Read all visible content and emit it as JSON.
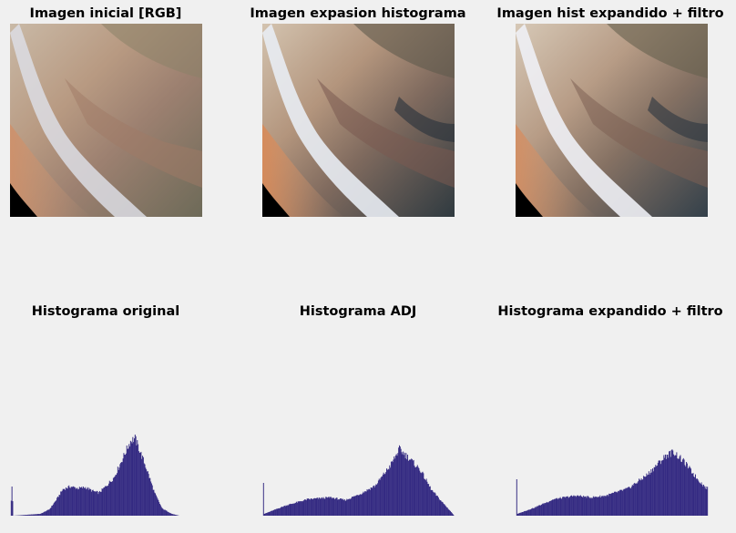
{
  "figure": {
    "titles": [
      "Imagen inicial [RGB]",
      "Imagen expasion histograma",
      "Imagen hist expandido + filtro",
      "Histograma original",
      "Histograma ADJ",
      "Histograma expandido + filtro"
    ]
  },
  "colors": {
    "bar": "#342a82",
    "background": "#f0f0f0",
    "image_corner": "#000000"
  },
  "chart_data": [
    {
      "type": "bar",
      "title": "Histograma original",
      "x_range": [
        0,
        255
      ],
      "control_points": [
        [
          0,
          0
        ],
        [
          2,
          0.32
        ],
        [
          4,
          0
        ],
        [
          40,
          0.02
        ],
        [
          52,
          0.07
        ],
        [
          60,
          0.16
        ],
        [
          70,
          0.29
        ],
        [
          80,
          0.32
        ],
        [
          90,
          0.3
        ],
        [
          100,
          0.31
        ],
        [
          110,
          0.27
        ],
        [
          118,
          0.25
        ],
        [
          128,
          0.33
        ],
        [
          138,
          0.42
        ],
        [
          148,
          0.6
        ],
        [
          160,
          0.82
        ],
        [
          166,
          0.85
        ],
        [
          172,
          0.72
        ],
        [
          182,
          0.5
        ],
        [
          192,
          0.25
        ],
        [
          202,
          0.08
        ],
        [
          215,
          0.02
        ],
        [
          225,
          0
        ]
      ],
      "spikes": [
        [
          2,
          0.32
        ]
      ]
    },
    {
      "type": "bar",
      "title": "Histograma ADJ",
      "x_range": [
        0,
        255
      ],
      "control_points": [
        [
          0,
          0
        ],
        [
          1,
          0.36
        ],
        [
          2,
          0.02
        ],
        [
          30,
          0.11
        ],
        [
          60,
          0.18
        ],
        [
          90,
          0.2
        ],
        [
          110,
          0.17
        ],
        [
          130,
          0.24
        ],
        [
          150,
          0.33
        ],
        [
          170,
          0.55
        ],
        [
          182,
          0.73
        ],
        [
          195,
          0.63
        ],
        [
          210,
          0.5
        ],
        [
          225,
          0.28
        ],
        [
          240,
          0.14
        ],
        [
          250,
          0.05
        ],
        [
          255,
          0.0
        ]
      ],
      "spikes": [
        [
          1,
          0.36
        ]
      ]
    },
    {
      "type": "bar",
      "title": "Histograma expandido + filtro",
      "x_range": [
        0,
        255
      ],
      "control_points": [
        [
          0,
          0
        ],
        [
          1,
          0.4
        ],
        [
          2,
          0.02
        ],
        [
          25,
          0.09
        ],
        [
          50,
          0.18
        ],
        [
          80,
          0.22
        ],
        [
          100,
          0.2
        ],
        [
          120,
          0.22
        ],
        [
          150,
          0.3
        ],
        [
          175,
          0.45
        ],
        [
          200,
          0.66
        ],
        [
          210,
          0.7
        ],
        [
          225,
          0.58
        ],
        [
          240,
          0.42
        ],
        [
          250,
          0.33
        ],
        [
          254,
          0.3
        ]
      ],
      "spikes": [
        [
          1,
          0.4
        ]
      ]
    }
  ]
}
